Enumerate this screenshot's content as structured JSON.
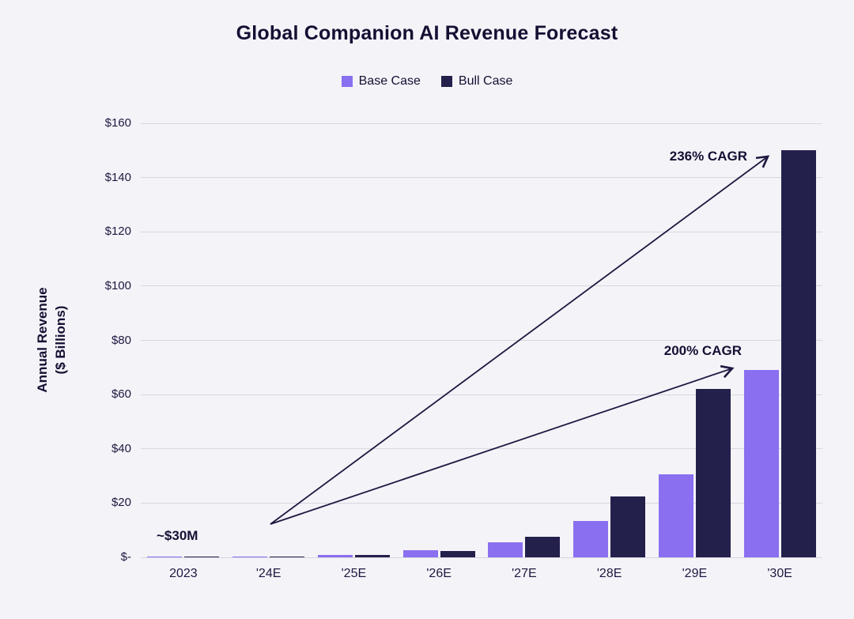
{
  "chart_data": {
    "type": "bar",
    "title": "Global Companion AI Revenue Forecast",
    "ylabel_line1": "Annual Revenue",
    "ylabel_line2": "($ Billions)",
    "categories": [
      "2023",
      "'24E",
      "'25E",
      "'26E",
      "'27E",
      "'28E",
      "'29E",
      "'30E"
    ],
    "series": [
      {
        "name": "Base Case",
        "color": "#8a6ff0",
        "values": [
          0.03,
          0.2,
          1.0,
          2.5,
          5.5,
          13.5,
          30.5,
          69
        ]
      },
      {
        "name": "Bull Case",
        "color": "#24204c",
        "values": [
          0.03,
          0.25,
          0.9,
          2.2,
          7.5,
          22.5,
          62,
          150
        ]
      }
    ],
    "ylim": [
      0,
      160
    ],
    "yticks": [
      {
        "label": "$-",
        "value": 0
      },
      {
        "label": "$20",
        "value": 20
      },
      {
        "label": "$40",
        "value": 40
      },
      {
        "label": "$60",
        "value": 60
      },
      {
        "label": "$80",
        "value": 80
      },
      {
        "label": "$100",
        "value": 100
      },
      {
        "label": "$120",
        "value": 120
      },
      {
        "label": "$140",
        "value": 140
      },
      {
        "label": "$160",
        "value": 160
      }
    ],
    "grid": "horizontal",
    "legend_position": "top-center",
    "annotations": {
      "start_note": "~$30M",
      "bull_cagr": "236% CAGR",
      "base_cagr": "200% CAGR"
    },
    "colors": {
      "background": "#f4f3f8",
      "text": "#150f33",
      "gridline": "#d8d7e0",
      "arrow": "#1e1840"
    }
  }
}
